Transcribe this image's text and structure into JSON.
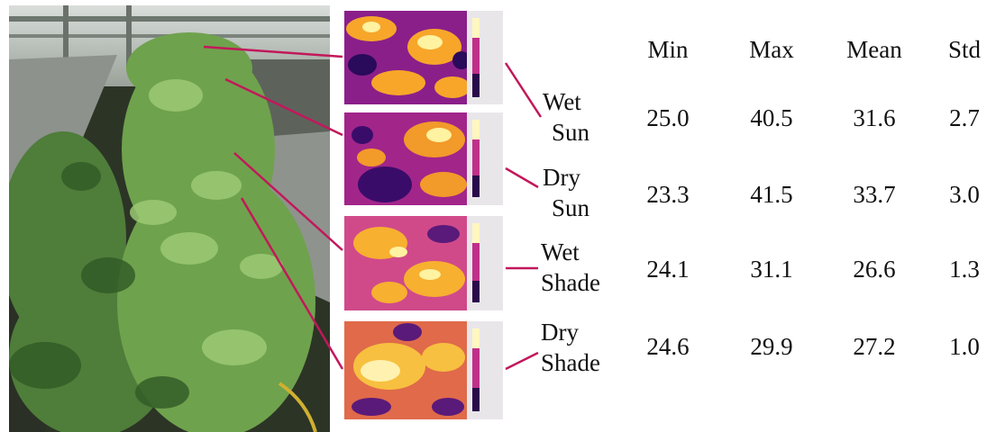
{
  "table": {
    "headers": [
      "Min",
      "Max",
      "Mean",
      "Std"
    ],
    "rows": [
      {
        "line1": "Wet",
        "line2": "Sun",
        "values": [
          "25.0",
          "40.5",
          "31.6",
          "2.7"
        ]
      },
      {
        "line1": "Dry",
        "line2": "Sun",
        "values": [
          "23.3",
          "41.5",
          "33.7",
          "3.0"
        ]
      },
      {
        "line1": "Wet",
        "line2": "Shade",
        "values": [
          "24.1",
          "31.1",
          "26.6",
          "1.3"
        ]
      },
      {
        "line1": "Dry",
        "line2": "Shade",
        "values": [
          "24.6",
          "29.9",
          "27.2",
          "1.0"
        ]
      }
    ]
  },
  "colors": {
    "connector": "#c2185b",
    "thermal_dark": "#2a0a4a",
    "thermal_mid": "#c0308a",
    "thermal_hot": "#f7b030",
    "thermal_white": "#fff7c0"
  }
}
